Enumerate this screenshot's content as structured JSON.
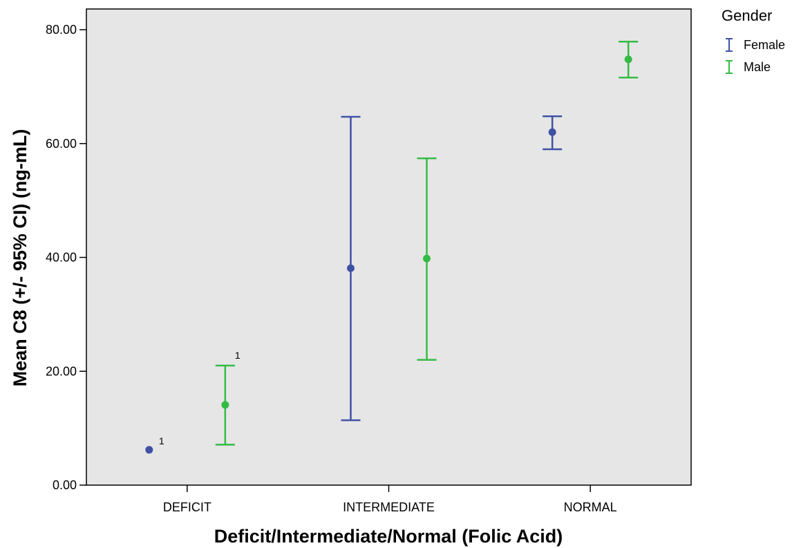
{
  "chart_data": {
    "type": "errorbar",
    "title": "",
    "xlabel": "Deficit/Intermediate/Normal (Folic Acid)",
    "ylabel": "Mean C8 (+/- 95% CI) (ng-mL)",
    "categories": [
      "DEFICIT",
      "INTERMEDIATE",
      "NORMAL"
    ],
    "ylim": [
      0,
      80
    ],
    "yticks": [
      "0.00",
      "20.00",
      "40.00",
      "60.00",
      "80.00"
    ],
    "grid": false,
    "legend": {
      "title": "Gender",
      "position": "top-right"
    },
    "series": [
      {
        "name": "Female",
        "color": "#3F51A5",
        "means": [
          6.2,
          38.1,
          62.0
        ],
        "lower": [
          null,
          11.4,
          59.0
        ],
        "upper": [
          null,
          64.7,
          64.8
        ],
        "annotations": [
          "1",
          "",
          ""
        ]
      },
      {
        "name": "Male",
        "color": "#33BB44",
        "means": [
          14.1,
          39.8,
          74.8
        ],
        "lower": [
          7.1,
          22.0,
          71.6
        ],
        "upper": [
          21.0,
          57.4,
          77.9
        ],
        "annotations": [
          "1",
          "",
          ""
        ]
      }
    ]
  }
}
